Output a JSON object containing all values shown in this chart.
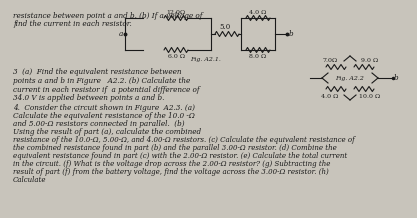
{
  "bg_color": "#c8c4bb",
  "text_color": "#1a1a1a",
  "fig_width": 3.97,
  "fig_height": 1.98,
  "header_line1": "resistance between point a and b. (b) If a voltage of",
  "header_line2": "find the current in each resistor.",
  "c1_r_top": "12.0Ω",
  "c1_r_bot": "6.0 Ω",
  "c1_r_mid": "5.0",
  "c1_r_right_top": "4.0 Ω",
  "c1_r_right_bot": "8.0 Ω",
  "c1_label": "Fig. A2.1.",
  "c1_node_a": "a",
  "c1_node_b": "b",
  "c2_r_top": "7.0Ω",
  "c2_r_left": "4.0 Ω",
  "c2_r_right": "9.0 Ω",
  "c2_r_bot": "10.0 Ω",
  "c2_label": "Fig. A2.2",
  "c2_node_b": "b",
  "p3_line1": "3  (a)  Find the equivalent resistance between",
  "p3_line2": "points a and b in Figure   A2.2. (b) Calculate the",
  "p3_line3": "current in each resistor if  a potential difference of",
  "p3_line4": "34.0 V is applied between points a and b.",
  "p4_line1": "4.  Consider the circuit shown in Figure  A2.3. (a)",
  "p4_line2": "Calculate the equivalent resistance of the 10.0 -Ω",
  "p4_line3": "and 5.00-Ω resistors connected in parallel.  (b)",
  "p4_line4": "Using the result of part (a), calculate the combined",
  "p4_long": "resistance of the 10.0-Ω, 5.00-Ω, and 4.00-Ω resistors. (c) Calculate the equivalent resistance of the combined resistance found in part (b) and the parallel 3.00-Ω resistor. (d) Combine the equivalent resistance found in part (c) with the 2.00-Ω resistor. (e) Calculate the total current in the circuit. (f) What is the voltage drop across the 2.00-Ω resistor? (g) Subtracting the result of part (f) from the battery voltage, find the voltage across the 3.00-Ω resistor. (h) Calculate"
}
